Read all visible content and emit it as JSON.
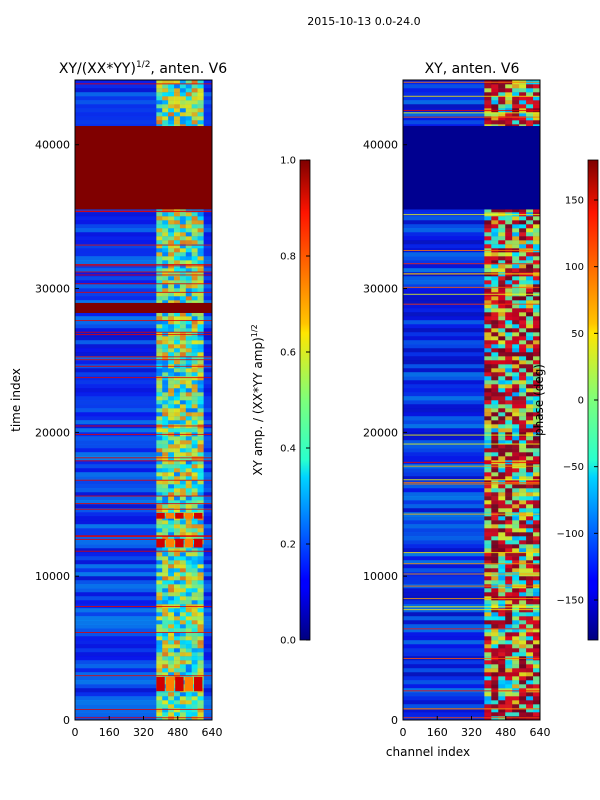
{
  "chart_data": [
    {
      "type": "heatmap",
      "panel": "left",
      "title": "XY/(XX*YY)^1/2, anten. V6",
      "title_main": "XY/(XX*YY)",
      "title_exp": "1/2",
      "title_rest": ", anten. V6",
      "xlabel": "",
      "ylabel": "time index",
      "xlim": [
        0,
        640
      ],
      "ylim": [
        0,
        44500
      ],
      "xticks": [
        0,
        160,
        320,
        480,
        640
      ],
      "yticks": [
        0,
        10000,
        20000,
        30000,
        40000
      ],
      "colorbar": {
        "label": "XY amp. / (XX*YY amp)^1/2",
        "label_main": "XY amp. / (XX*YY amp)",
        "label_exp": "1/2",
        "range": [
          0.0,
          1.0
        ],
        "ticks": [
          0.0,
          0.2,
          0.4,
          0.6,
          0.8,
          1.0
        ],
        "tick_labels": [
          "0.0",
          "0.2",
          "0.4",
          "0.6",
          "0.8",
          "1.0"
        ]
      },
      "saturated_time_ranges": [
        [
          35500,
          41300
        ],
        [
          28300,
          29000
        ]
      ],
      "bright_channel_band": [
        380,
        600
      ],
      "bright_time_bands": [
        [
          14000,
          14400
        ],
        [
          12000,
          12600
        ],
        [
          2000,
          3000
        ]
      ]
    },
    {
      "type": "heatmap",
      "panel": "right",
      "title": "XY, anten. V6",
      "xlabel": "channel index",
      "ylabel": "",
      "xlim": [
        0,
        640
      ],
      "ylim": [
        0,
        44500
      ],
      "xticks": [
        0,
        160,
        320,
        480,
        640
      ],
      "yticks": [
        0,
        10000,
        20000,
        30000,
        40000
      ],
      "colorbar": {
        "label": "phase (deg)",
        "range": [
          -180,
          180
        ],
        "ticks": [
          -150,
          -100,
          -50,
          0,
          50,
          100,
          150
        ],
        "tick_labels": [
          "−150",
          "−100",
          "−50",
          "0",
          "50",
          "100",
          "150"
        ]
      },
      "blank_time_ranges": [
        [
          35500,
          41300
        ]
      ],
      "bright_channel_band": [
        380,
        640
      ]
    }
  ],
  "suptitle": "2015-10-13 0.0-24.0"
}
